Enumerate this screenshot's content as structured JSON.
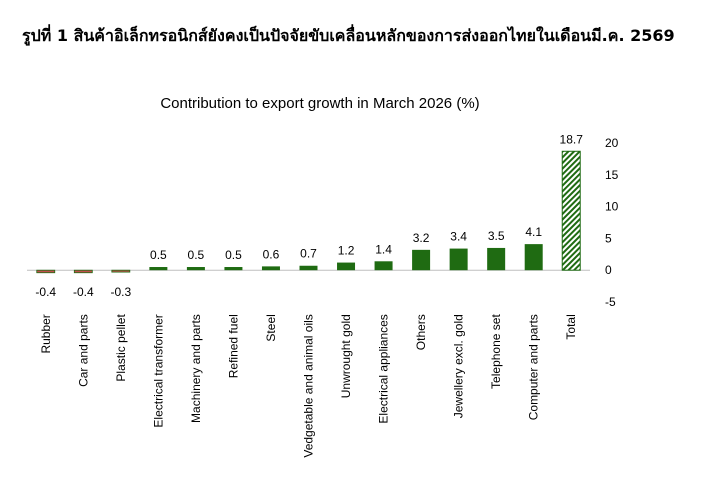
{
  "figure_title": "รูปที่ 1 สินค้าอิเล็กทรอนิกส์ยังคงเป็นปัจจัยขับเคลื่อนหลักของการส่งออกไทยในเดือนมี.ค. 2569",
  "chart_data": {
    "type": "bar",
    "title": "Contribution to export growth in March 2026 (%)",
    "xlabel": "",
    "ylabel": "",
    "categories": [
      "Rubber",
      "Car and parts",
      "Plastic pellet",
      "Electrical transformer",
      "Machinery and parts",
      "Refined fuel",
      "Steel",
      "Vedgetable and animal oils",
      "Unwrought gold",
      "Electrical appliances",
      "Others",
      "Jewellery excl. gold",
      "Telephone set",
      "Computer and parts",
      "Total"
    ],
    "values": [
      -0.4,
      -0.4,
      -0.3,
      0.5,
      0.5,
      0.5,
      0.6,
      0.7,
      1.2,
      1.4,
      3.2,
      3.4,
      3.5,
      4.1,
      18.7
    ],
    "data_labels": [
      "-0.4",
      "-0.4",
      "-0.3",
      "0.5",
      "0.5",
      "0.5",
      "0.6",
      "0.7",
      "1.2",
      "1.4",
      "3.2",
      "3.4",
      "3.5",
      "4.1",
      "18.7"
    ],
    "ylim": [
      -5,
      20
    ],
    "yticks": [
      20,
      15,
      10,
      5,
      0,
      -5
    ],
    "ytick_labels": [
      "20",
      "15",
      "10",
      "5",
      "0",
      "-5"
    ],
    "y_axis_side": "right",
    "grid": false,
    "legend": "none",
    "colors": {
      "positive": "#1f6b12",
      "negative": "#c0504d",
      "total_stripe_a": "#1f6b12",
      "total_stripe_b": "#ffffff"
    }
  }
}
